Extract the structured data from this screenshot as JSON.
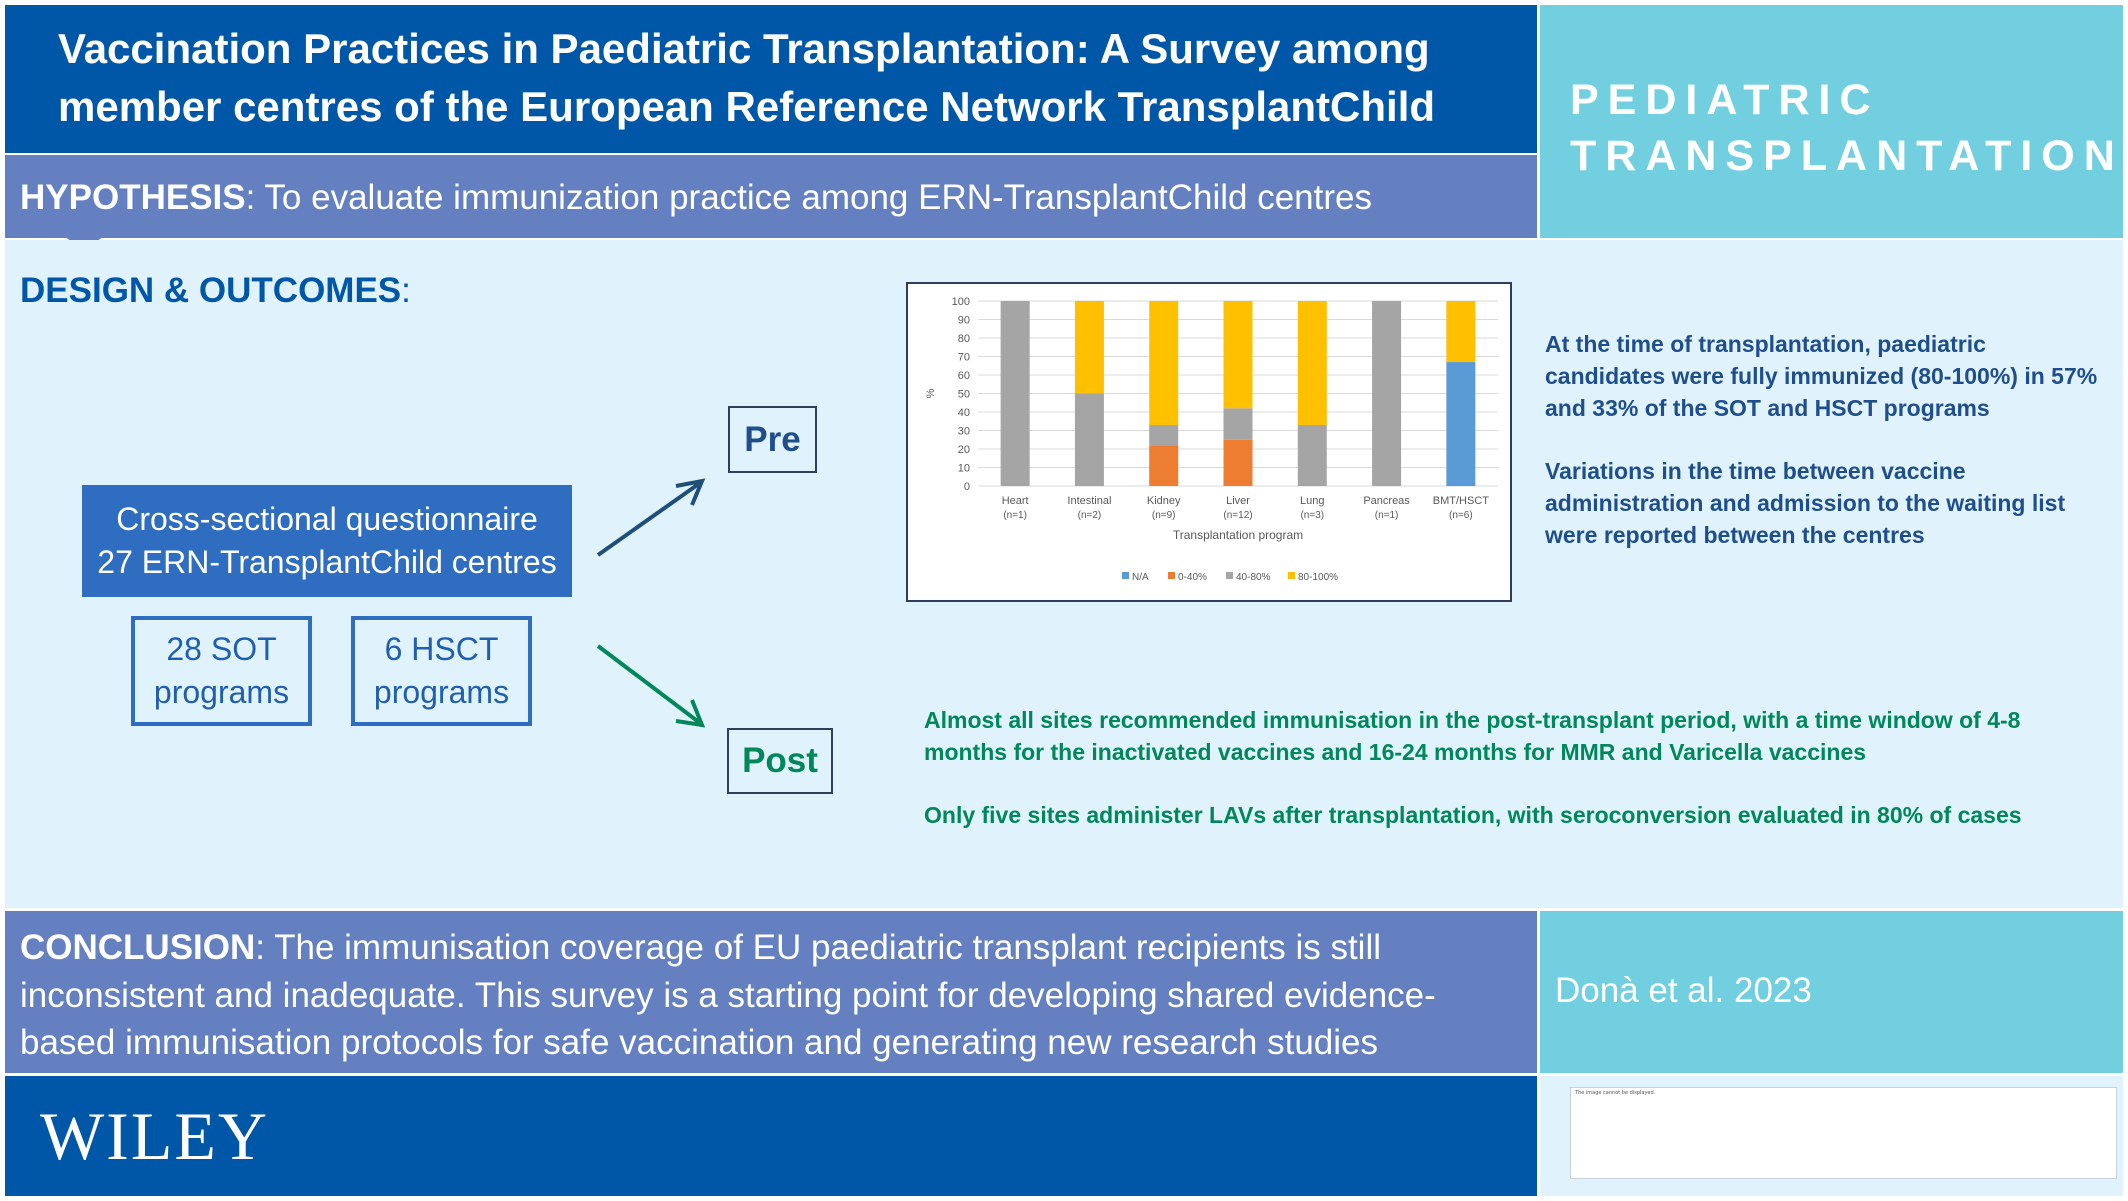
{
  "header": {
    "title_line1": "Vaccination Practices in Paediatric Transplantation: A Survey among",
    "title_line2": "member centres of the European Reference Network TransplantChild",
    "journal_line1": "PEDIATRIC",
    "journal_line2": "TRANSPLANTATION"
  },
  "hypothesis": {
    "label": "HYPOTHESIS",
    "text": ": To evaluate immunization practice among ERN-TransplantChild centres"
  },
  "design": {
    "label": "DESIGN & OUTCOMES",
    "suffix": ":",
    "questionnaire_line1": "Cross-sectional questionnaire",
    "questionnaire_line2": "27 ERN-TransplantChild centres",
    "sot_line1": "28 SOT",
    "sot_line2": "programs",
    "hsct_line1": "6 HSCT",
    "hsct_line2": "programs",
    "pre_label": "Pre",
    "post_label": "Post"
  },
  "chart_data": {
    "type": "bar",
    "stacked": true,
    "categories": [
      "Heart",
      "Intestinal",
      "Kidney",
      "Liver",
      "Lung",
      "Pancreas",
      "BMT/HSCT"
    ],
    "category_counts": [
      "(n=1)",
      "(n=2)",
      "(n=9)",
      "(n=12)",
      "(n=3)",
      "(n=1)",
      "(n=6)"
    ],
    "series": [
      {
        "name": "N/A",
        "color": "#5b9bd5",
        "values": [
          0,
          0,
          0,
          0,
          0,
          0,
          67
        ]
      },
      {
        "name": "0-40%",
        "color": "#ed7d31",
        "values": [
          0,
          0,
          22,
          25,
          0,
          0,
          0
        ]
      },
      {
        "name": "40-80%",
        "color": "#a5a5a5",
        "values": [
          100,
          50,
          11,
          17,
          33,
          100,
          0
        ]
      },
      {
        "name": "80-100%",
        "color": "#ffc000",
        "values": [
          0,
          50,
          67,
          58,
          67,
          0,
          33
        ]
      }
    ],
    "ylabel": "%",
    "xlabel": "Transplantation program",
    "ylim": [
      0,
      100
    ],
    "yticks": [
      0,
      10,
      20,
      30,
      40,
      50,
      60,
      70,
      80,
      90,
      100
    ],
    "grid": true,
    "legend_position": "bottom"
  },
  "pre_findings": {
    "p1": "At the time of transplantation, paediatric candidates were fully immunized (80-100%) in 57% and 33% of the SOT and HSCT programs",
    "p2": "Variations in the time between vaccine administration and admission to the waiting list were reported between the centres"
  },
  "post_findings": {
    "p1": "Almost all sites recommended immunisation in the post-transplant period, with a time window of 4-8 months for the inactivated vaccines and 16-24 months for MMR and Varicella vaccines",
    "p2": "Only five sites administer LAVs after transplantation, with seroconversion evaluated in 80% of cases"
  },
  "conclusion": {
    "label": "CONCLUSION",
    "text": ": The immunisation coverage of EU paediatric transplant recipients is still inconsistent and inadequate. This survey is a starting point for developing shared evidence-based immunisation protocols for safe vaccination and generating new research studies"
  },
  "citation": "Donà et al. 2023",
  "footer": {
    "publisher": "WILEY",
    "placeholder_text": "The image cannot be displayed."
  },
  "colors": {
    "dark_blue": "#0057a8",
    "mid_blue": "#6480c1",
    "light_cyan": "#71cfe0",
    "pale_blue": "#e0f2fb",
    "green": "#00875a"
  }
}
